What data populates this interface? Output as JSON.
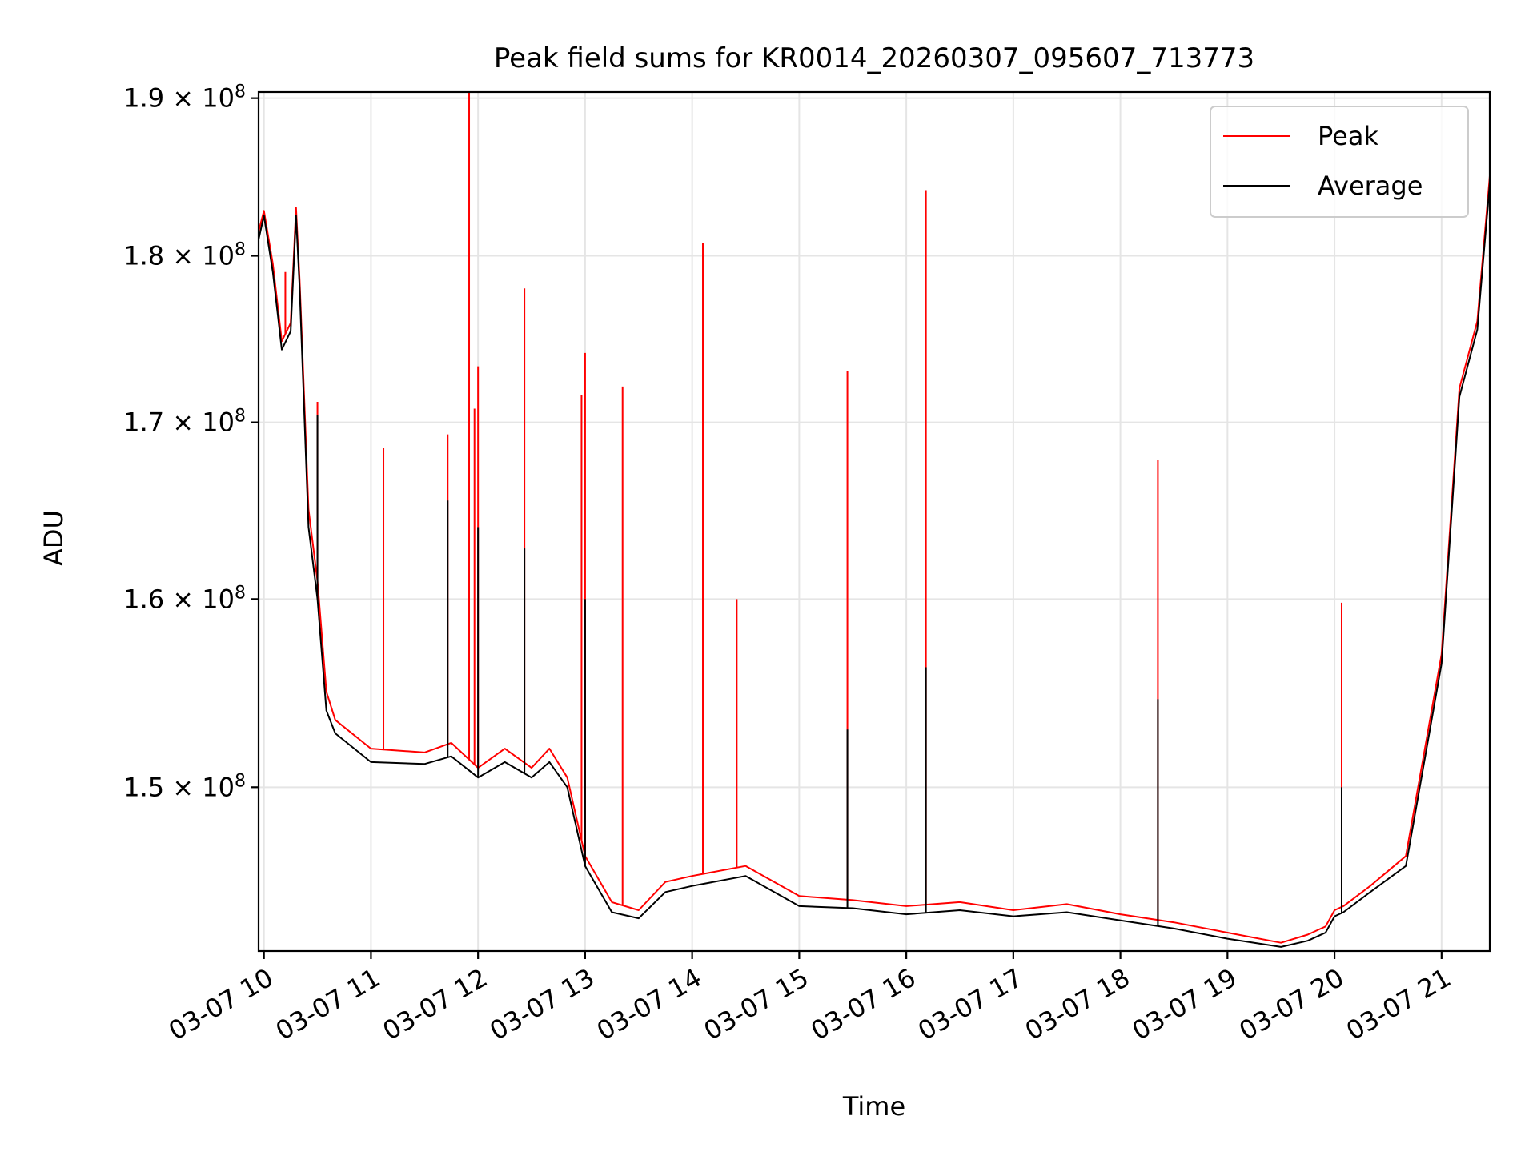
{
  "chart_data": {
    "type": "line",
    "title": "Peak field sums for KR0014_20260307_095607_713773",
    "xlabel": "Time",
    "ylabel": "ADU",
    "x_range": [
      "03-07 09:57",
      "03-07 21:27"
    ],
    "ylim": [
      141800000,
      190400000
    ],
    "y_scale": "log",
    "grid": true,
    "legend_position": "upper right",
    "x_ticks": [
      "03-07 10",
      "03-07 11",
      "03-07 12",
      "03-07 13",
      "03-07 14",
      "03-07 15",
      "03-07 16",
      "03-07 17",
      "03-07 18",
      "03-07 19",
      "03-07 20",
      "03-07 21"
    ],
    "y_ticks": [
      {
        "value": 150000000,
        "mantissa": "1.5",
        "exp": "8"
      },
      {
        "value": 160000000,
        "mantissa": "1.6",
        "exp": "8"
      },
      {
        "value": 170000000,
        "mantissa": "1.7",
        "exp": "8"
      },
      {
        "value": 180000000,
        "mantissa": "1.8",
        "exp": "8"
      },
      {
        "value": 190000000,
        "mantissa": "1.9",
        "exp": "8"
      }
    ],
    "series": [
      {
        "name": "Peak",
        "color": "#ff0000",
        "x": [
          "03-07 09:57",
          "03-07 10:00",
          "03-07 10:05",
          "03-07 10:10",
          "03-07 10:15",
          "03-07 10:18",
          "03-07 10:20",
          "03-07 10:25",
          "03-07 10:30",
          "03-07 10:35",
          "03-07 10:40",
          "03-07 11:00",
          "03-07 11:30",
          "03-07 11:45",
          "03-07 12:00",
          "03-07 12:15",
          "03-07 12:30",
          "03-07 12:40",
          "03-07 12:50",
          "03-07 13:00",
          "03-07 13:15",
          "03-07 13:30",
          "03-07 13:45",
          "03-07 14:00",
          "03-07 14:30",
          "03-07 15:00",
          "03-07 15:30",
          "03-07 16:00",
          "03-07 16:30",
          "03-07 17:00",
          "03-07 17:30",
          "03-07 18:00",
          "03-07 18:30",
          "03-07 19:00",
          "03-07 19:30",
          "03-07 19:45",
          "03-07 19:55",
          "03-07 20:00",
          "03-07 20:05",
          "03-07 20:20",
          "03-07 20:40",
          "03-07 21:00",
          "03-07 21:10",
          "03-07 21:20",
          "03-07 21:27"
        ],
        "values": [
          181500000,
          182800000,
          179500000,
          174800000,
          175900000,
          183000000,
          178500000,
          165000000,
          161000000,
          155000000,
          153500000,
          152000000,
          151800000,
          152300000,
          151000000,
          152000000,
          151000000,
          152000000,
          150500000,
          146500000,
          144200000,
          143800000,
          145200000,
          145500000,
          146000000,
          144500000,
          144300000,
          144000000,
          144200000,
          143800000,
          144100000,
          143600000,
          143200000,
          142700000,
          142200000,
          142600000,
          143000000,
          143800000,
          144000000,
          145000000,
          146500000,
          157000000,
          172000000,
          176000000,
          185000000
        ],
        "spikes": [
          {
            "x": "03-07 10:12",
            "v": 179000000
          },
          {
            "x": "03-07 10:30",
            "v": 171200000
          },
          {
            "x": "03-07 11:07",
            "v": 168500000
          },
          {
            "x": "03-07 11:43",
            "v": 169300000
          },
          {
            "x": "03-07 11:55",
            "v": 190400000
          },
          {
            "x": "03-07 11:58",
            "v": 170800000
          },
          {
            "x": "03-07 12:00",
            "v": 173300000
          },
          {
            "x": "03-07 12:26",
            "v": 178000000
          },
          {
            "x": "03-07 12:58",
            "v": 171600000
          },
          {
            "x": "03-07 13:00",
            "v": 174100000
          },
          {
            "x": "03-07 13:21",
            "v": 172100000
          },
          {
            "x": "03-07 14:06",
            "v": 180800000
          },
          {
            "x": "03-07 14:25",
            "v": 160000000
          },
          {
            "x": "03-07 15:27",
            "v": 173000000
          },
          {
            "x": "03-07 16:11",
            "v": 184100000
          },
          {
            "x": "03-07 18:21",
            "v": 167800000
          },
          {
            "x": "03-07 20:04",
            "v": 159800000
          }
        ]
      },
      {
        "name": "Average",
        "color": "#000000",
        "x": [
          "03-07 09:57",
          "03-07 10:00",
          "03-07 10:05",
          "03-07 10:10",
          "03-07 10:15",
          "03-07 10:18",
          "03-07 10:20",
          "03-07 10:25",
          "03-07 10:30",
          "03-07 10:35",
          "03-07 10:40",
          "03-07 11:00",
          "03-07 11:30",
          "03-07 11:45",
          "03-07 12:00",
          "03-07 12:15",
          "03-07 12:30",
          "03-07 12:40",
          "03-07 12:50",
          "03-07 13:00",
          "03-07 13:15",
          "03-07 13:30",
          "03-07 13:45",
          "03-07 14:00",
          "03-07 14:30",
          "03-07 15:00",
          "03-07 15:30",
          "03-07 16:00",
          "03-07 16:30",
          "03-07 17:00",
          "03-07 17:30",
          "03-07 18:00",
          "03-07 18:30",
          "03-07 19:00",
          "03-07 19:30",
          "03-07 19:45",
          "03-07 19:55",
          "03-07 20:00",
          "03-07 20:05",
          "03-07 20:20",
          "03-07 20:40",
          "03-07 21:00",
          "03-07 21:10",
          "03-07 21:20",
          "03-07 21:27"
        ],
        "values": [
          181000000,
          182500000,
          179000000,
          174300000,
          175400000,
          182500000,
          178000000,
          164000000,
          160000000,
          154000000,
          152800000,
          151300000,
          151200000,
          151600000,
          150500000,
          151300000,
          150500000,
          151300000,
          150000000,
          146000000,
          143700000,
          143400000,
          144700000,
          145000000,
          145500000,
          144000000,
          143900000,
          143600000,
          143800000,
          143500000,
          143700000,
          143300000,
          142900000,
          142400000,
          142000000,
          142300000,
          142700000,
          143500000,
          143700000,
          144700000,
          146000000,
          156500000,
          171500000,
          175500000,
          184500000
        ],
        "spikes": [
          {
            "x": "03-07 10:30",
            "v": 170400000
          },
          {
            "x": "03-07 11:43",
            "v": 165500000
          },
          {
            "x": "03-07 12:00",
            "v": 164000000
          },
          {
            "x": "03-07 12:26",
            "v": 162800000
          },
          {
            "x": "03-07 13:00",
            "v": 160000000
          },
          {
            "x": "03-07 15:27",
            "v": 153000000
          },
          {
            "x": "03-07 16:11",
            "v": 156300000
          },
          {
            "x": "03-07 18:21",
            "v": 154600000
          },
          {
            "x": "03-07 20:04",
            "v": 150000000
          }
        ]
      }
    ]
  }
}
